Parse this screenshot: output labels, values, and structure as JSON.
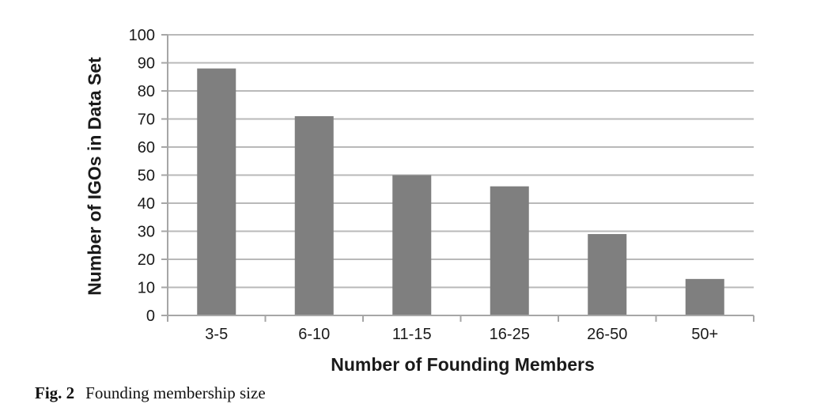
{
  "figure": {
    "caption_label": "Fig. 2",
    "caption_text": "Founding membership size"
  },
  "chart_data": {
    "type": "bar",
    "title": "",
    "categories": [
      "3-5",
      "6-10",
      "11-15",
      "16-25",
      "26-50",
      "50+"
    ],
    "values": [
      88,
      71,
      50,
      46,
      29,
      13
    ],
    "xlabel": "Number of Founding Members",
    "ylabel": "Number of IGOs in Data Set",
    "ylim": [
      0,
      100
    ],
    "yticks": [
      0,
      10,
      20,
      30,
      40,
      50,
      60,
      70,
      80,
      90,
      100
    ],
    "grid": "horizontal",
    "legend": "none",
    "bar_color": "#7f7f7f",
    "gridline_color": "#b9b9b9",
    "axis_color": "#a6a6a6",
    "text_color": "#1a1a1a"
  }
}
